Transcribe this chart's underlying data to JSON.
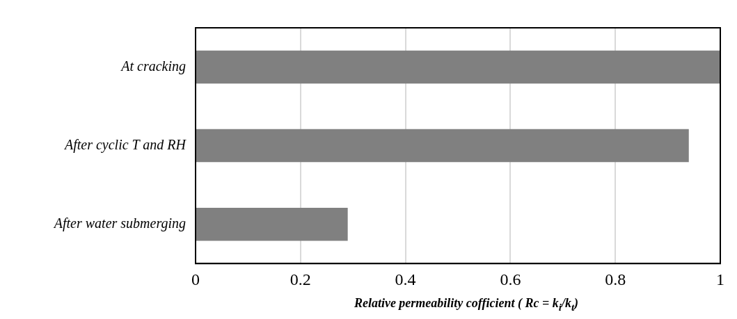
{
  "chart_data": {
    "type": "bar",
    "orientation": "horizontal",
    "xlabel": "Relative permeability cofficient ( Rc = k$_{i}$/k$_{t}$)",
    "categories": [
      "At cracking",
      "After cyclic T and RH",
      "After water submerging"
    ],
    "values": [
      1.0,
      0.94,
      0.29
    ],
    "color": "#808080",
    "xlim": [
      0,
      1
    ],
    "xticks": [
      0,
      0.2,
      0.4,
      0.6,
      0.8,
      1
    ],
    "grid": "x"
  }
}
